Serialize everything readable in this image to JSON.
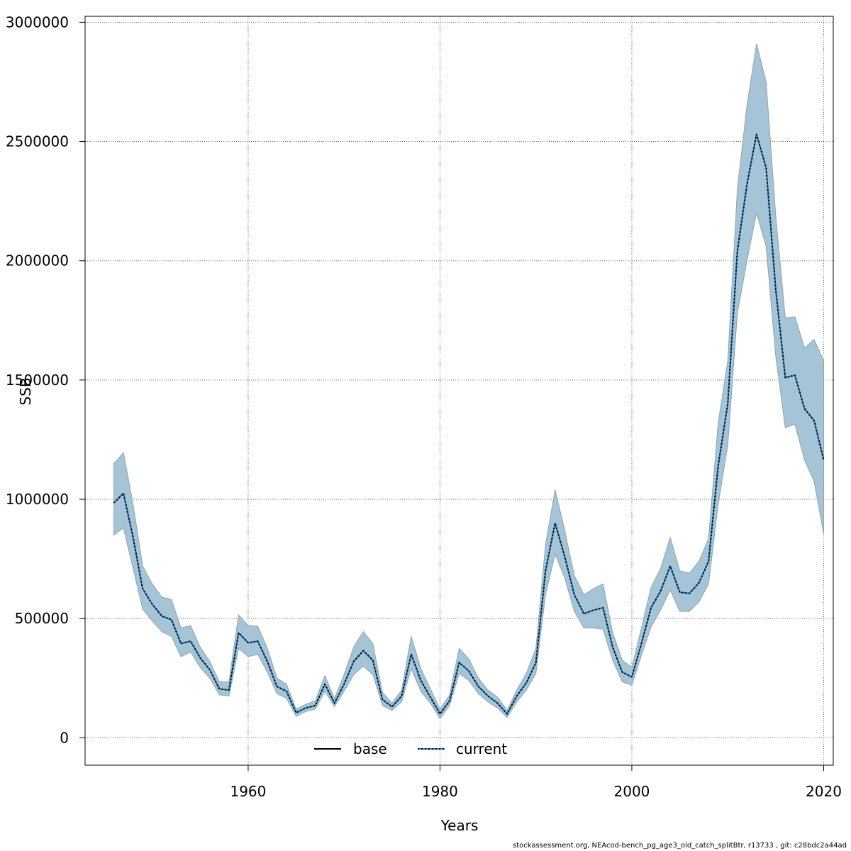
{
  "chart_data": {
    "type": "line",
    "xlabel": "Years",
    "ylabel": "SSB",
    "xlim": [
      1943,
      2021
    ],
    "ylim": [
      -115000,
      3025000
    ],
    "x_ticks": [
      1960,
      1980,
      2000,
      2020
    ],
    "y_ticks": [
      0,
      500000,
      1000000,
      1500000,
      2000000,
      2500000,
      3000000
    ],
    "grid": true,
    "legend_position": "bottom-center",
    "years": [
      1946,
      1947,
      1948,
      1949,
      1950,
      1951,
      1952,
      1953,
      1954,
      1955,
      1956,
      1957,
      1958,
      1959,
      1960,
      1961,
      1962,
      1963,
      1964,
      1965,
      1966,
      1967,
      1968,
      1969,
      1970,
      1971,
      1972,
      1973,
      1974,
      1975,
      1976,
      1977,
      1978,
      1979,
      1980,
      1981,
      1982,
      1983,
      1984,
      1985,
      1986,
      1987,
      1988,
      1989,
      1990,
      1991,
      1992,
      1993,
      1994,
      1995,
      1996,
      1997,
      1998,
      1999,
      2000,
      2001,
      2002,
      2003,
      2004,
      2005,
      2006,
      2007,
      2008,
      2009,
      2010,
      2011,
      2012,
      2013,
      2014,
      2015,
      2016,
      2017,
      2018,
      2019,
      2020
    ],
    "band_upper": [
      1150000,
      1195000,
      980000,
      720000,
      645000,
      590000,
      580000,
      460000,
      470000,
      380000,
      320000,
      235000,
      235000,
      515000,
      470000,
      468000,
      375000,
      250000,
      225000,
      120000,
      140000,
      155000,
      260000,
      165000,
      265000,
      380000,
      445000,
      395000,
      190000,
      145000,
      200000,
      425000,
      290000,
      205000,
      120000,
      180000,
      375000,
      330000,
      250000,
      200000,
      170000,
      115000,
      200000,
      270000,
      375000,
      810000,
      1040000,
      870000,
      680000,
      600000,
      625000,
      645000,
      440000,
      325000,
      295000,
      460000,
      630000,
      710000,
      840000,
      700000,
      690000,
      740000,
      835000,
      1320000,
      1580000,
      2300000,
      2650000,
      2910000,
      2750000,
      2190000,
      1760000,
      1765000,
      1635000,
      1670000,
      1580000
    ],
    "band_lower": [
      850000,
      880000,
      710000,
      540000,
      490000,
      445000,
      425000,
      340000,
      360000,
      295000,
      250000,
      180000,
      175000,
      375000,
      340000,
      350000,
      275000,
      185000,
      165000,
      90000,
      110000,
      120000,
      195000,
      130000,
      195000,
      265000,
      300000,
      265000,
      135000,
      115000,
      150000,
      290000,
      195000,
      145000,
      80000,
      135000,
      270000,
      240000,
      185000,
      150000,
      125000,
      85000,
      150000,
      200000,
      270000,
      600000,
      770000,
      670000,
      530000,
      460000,
      460000,
      455000,
      325000,
      235000,
      220000,
      345000,
      465000,
      535000,
      620000,
      530000,
      530000,
      570000,
      645000,
      980000,
      1225000,
      1780000,
      2000000,
      2200000,
      2060000,
      1600000,
      1300000,
      1315000,
      1165000,
      1075000,
      855000
    ],
    "series": [
      {
        "name": "base",
        "values": [
          985000,
          1025000,
          840000,
          625000,
          560000,
          510000,
          495000,
          395000,
          405000,
          335000,
          285000,
          205000,
          200000,
          440000,
          398000,
          405000,
          320000,
          215000,
          195000,
          105000,
          125000,
          135000,
          225000,
          145000,
          225000,
          320000,
          365000,
          325000,
          160000,
          130000,
          175000,
          350000,
          240000,
          170000,
          100000,
          155000,
          315000,
          280000,
          215000,
          175000,
          145000,
          100000,
          175000,
          230000,
          315000,
          700000,
          900000,
          760000,
          600000,
          520000,
          535000,
          545000,
          380000,
          275000,
          255000,
          395000,
          545000,
          615000,
          720000,
          610000,
          605000,
          650000,
          740000,
          1140000,
          1400000,
          2040000,
          2320000,
          2530000,
          2390000,
          1880000,
          1510000,
          1520000,
          1380000,
          1330000,
          1165000
        ]
      },
      {
        "name": "current",
        "values": [
          985000,
          1025000,
          840000,
          625000,
          560000,
          510000,
          495000,
          395000,
          405000,
          335000,
          285000,
          205000,
          200000,
          440000,
          398000,
          405000,
          320000,
          215000,
          195000,
          105000,
          125000,
          135000,
          225000,
          145000,
          225000,
          320000,
          365000,
          325000,
          160000,
          130000,
          175000,
          350000,
          240000,
          170000,
          100000,
          155000,
          315000,
          280000,
          215000,
          175000,
          145000,
          100000,
          175000,
          230000,
          315000,
          700000,
          900000,
          760000,
          600000,
          520000,
          535000,
          545000,
          380000,
          275000,
          255000,
          395000,
          545000,
          615000,
          720000,
          610000,
          605000,
          650000,
          740000,
          1140000,
          1400000,
          2040000,
          2320000,
          2530000,
          2390000,
          1880000,
          1510000,
          1520000,
          1380000,
          1330000,
          1165000
        ]
      }
    ]
  },
  "colors": {
    "band_fill": "#a5c5d6",
    "band_edge": "#8fa3ad",
    "base_line": "#000000",
    "current_line": "#000000",
    "current_line_alt": "#1f77b4"
  },
  "footer": "stockassessment.org, NEAcod-bench_pg_age3_old_catch_splitBtr, r13733 , git: c28bdc2a44ad"
}
